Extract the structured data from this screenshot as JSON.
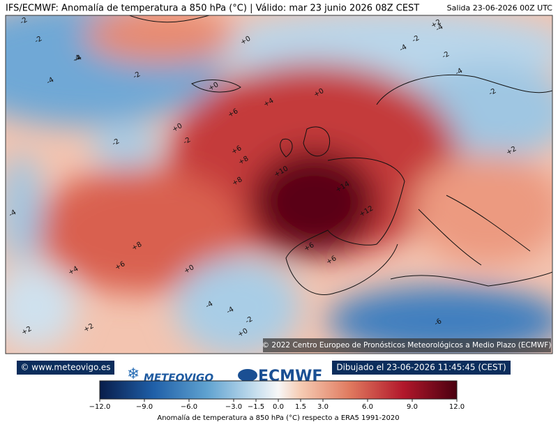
{
  "header": {
    "title": "IFS/ECMWF: Anomalía de temperatura a 850 hPa (°C) | Válido: mar 23 junio 2026 08Z CEST",
    "run": "Salida 23-06-2026 00Z UTC"
  },
  "map": {
    "copyright": "© 2022 Centro Europeo de Pronósticos Meteorológicos a Medio Plazo (ECMWF)",
    "contour_labels": [
      "-2",
      "-2",
      "-4",
      "-4",
      "-2",
      "+0",
      "+0",
      "+0",
      "+4",
      "+6",
      "+0",
      "-2",
      "-2",
      "+6",
      "+8",
      "+8",
      "+10",
      "+14",
      "+12",
      "+8",
      "+6",
      "+6",
      "+6",
      "+4",
      "+0",
      "+2",
      "+2",
      "-4",
      "-2",
      "-4",
      "-4",
      "-2",
      "-4",
      "-2",
      "-4",
      "+2",
      "-2",
      "-4",
      "-6",
      "+0",
      "+2",
      "-4"
    ]
  },
  "footer": {
    "website": "© www.meteovigo.es",
    "logo_meteovigo": "METEOVIGO",
    "logo_ecmwf": "ECMWF",
    "drawn": "Dibujado el 23-06-2026 11:45:45 (CEST)"
  },
  "colorbar": {
    "lim": [
      -12,
      12
    ],
    "ticks": [
      {
        "value": -12,
        "label": "−12.0"
      },
      {
        "value": -9,
        "label": "−9.0"
      },
      {
        "value": -6,
        "label": "−6.0"
      },
      {
        "value": -3,
        "label": "−3.0"
      },
      {
        "value": -1.5,
        "label": "−1.5"
      },
      {
        "value": 0,
        "label": "0.0"
      },
      {
        "value": 1.5,
        "label": "1.5"
      },
      {
        "value": 3,
        "label": "3.0"
      },
      {
        "value": 6,
        "label": "6.0"
      },
      {
        "value": 9,
        "label": "9.0"
      },
      {
        "value": 12,
        "label": "12.0"
      }
    ],
    "label": "Anomalía de temperatura a 850 hPa (°C) respecto a ERA5 1991-2020"
  }
}
